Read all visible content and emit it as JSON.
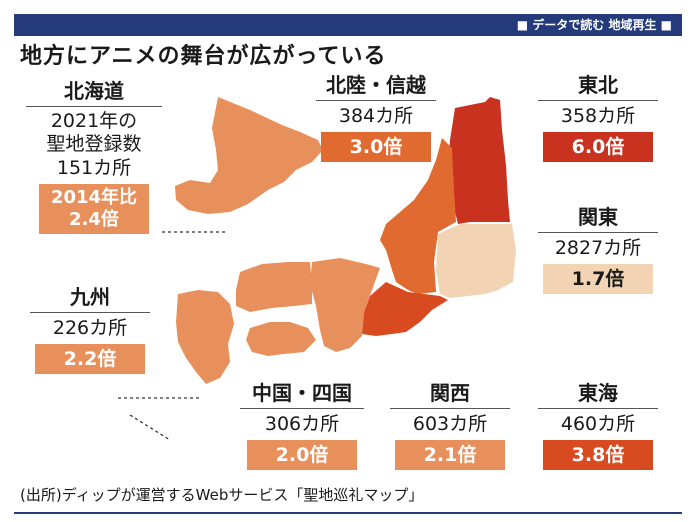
{
  "header": {
    "series": "■ データで読む 地域再生 ■"
  },
  "title": "地方にアニメの舞台が広がっている",
  "colors": {
    "navy": "#243a7a",
    "light": "#f2d3b4",
    "mid": "#e8905c",
    "medium_dark": "#e06a30",
    "dark": "#d84a20",
    "darkest": "#c8321e"
  },
  "map_regions": [
    {
      "region": "北海道",
      "ratio": 2.4
    },
    {
      "region": "東北",
      "ratio": 6.0
    },
    {
      "region": "関東",
      "ratio": 1.7
    },
    {
      "region": "北陸・信越",
      "ratio": 3.0
    },
    {
      "region": "東海",
      "ratio": 3.8
    },
    {
      "region": "関西",
      "ratio": 2.1
    },
    {
      "region": "中国・四国",
      "ratio": 2.0
    },
    {
      "region": "九州",
      "ratio": 2.2
    }
  ],
  "cards": {
    "hokkaido": {
      "name": "北海道",
      "line1": "2021年の",
      "line2": "聖地登録数",
      "count": "151カ所",
      "badge1": "2014年比",
      "badge2": "2.4倍"
    },
    "hokuriku": {
      "name": "北陸・信越",
      "count": "384カ所",
      "badge": "3.0倍"
    },
    "tohoku": {
      "name": "東北",
      "count": "358カ所",
      "badge": "6.0倍"
    },
    "kanto": {
      "name": "関東",
      "count": "2827カ所",
      "badge": "1.7倍"
    },
    "kyushu": {
      "name": "九州",
      "count": "226カ所",
      "badge": "2.2倍"
    },
    "chugoku": {
      "name": "中国・四国",
      "count": "306カ所",
      "badge": "2.0倍"
    },
    "kansai": {
      "name": "関西",
      "count": "603カ所",
      "badge": "2.1倍"
    },
    "tokai": {
      "name": "東海",
      "count": "460カ所",
      "badge": "3.8倍"
    }
  },
  "footer": "(出所)ディップが運営するWebサービス「聖地巡礼マップ」"
}
